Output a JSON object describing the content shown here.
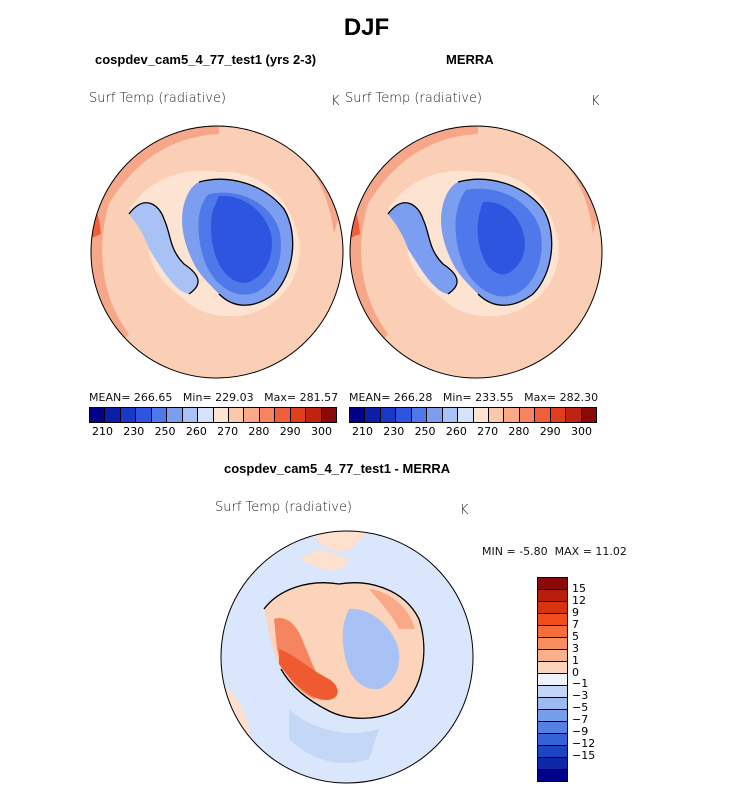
{
  "title": "DJF",
  "panels": {
    "left": {
      "subtitle": "cospdev_cam5_4_77_test1 (yrs 2-3)",
      "variable": "Surf Temp (radiative)",
      "units": "K",
      "stats": {
        "mean_label": "MEAN=",
        "mean": "266.65",
        "min_label": "Min=",
        "min": "229.03",
        "max_label": "Max=",
        "max": "281.57"
      }
    },
    "right": {
      "subtitle": "MERRA",
      "variable": "Surf Temp (radiative)",
      "units": "K",
      "stats": {
        "mean_label": "MEAN=",
        "mean": "266.28",
        "min_label": "Min=",
        "min": "233.55",
        "max_label": "Max=",
        "max": "282.30"
      }
    },
    "diff": {
      "subtitle": "cospdev_cam5_4_77_test1 - MERRA",
      "variable": "Surf Temp (radiative)",
      "units": "K",
      "stats": {
        "min_label": "MIN =",
        "min": "-5.80",
        "max_label": "MAX =",
        "max": "11.02"
      }
    }
  },
  "colorbar_abs": {
    "colors": [
      "#00008b",
      "#0a1ea8",
      "#1a38c8",
      "#2e55e0",
      "#4f78ea",
      "#7c9ef0",
      "#a9c2f5",
      "#d4e2fa",
      "#fde4d2",
      "#fbc8aa",
      "#f9a888",
      "#f6855f",
      "#f15f3a",
      "#e03e1c",
      "#bf2410",
      "#8a0a0a"
    ],
    "tick_labels": [
      "210",
      "230",
      "250",
      "260",
      "270",
      "280",
      "290",
      "300"
    ]
  },
  "colorbar_diff": {
    "colors": [
      "#8a0a0a",
      "#b81e0a",
      "#d8330f",
      "#f24c1c",
      "#f66d39",
      "#f98f60",
      "#fbb08c",
      "#fcd3bb",
      "#eef3fb",
      "#c3d6f7",
      "#9bbaf2",
      "#769deb",
      "#5480e3",
      "#3562d8",
      "#1d44c2",
      "#0c28a6",
      "#00008b"
    ],
    "labels": [
      "15",
      "12",
      "9",
      "7",
      "5",
      "3",
      "1",
      "0",
      "−1",
      "−3",
      "−5",
      "−7",
      "−9",
      "−12",
      "−15"
    ]
  }
}
